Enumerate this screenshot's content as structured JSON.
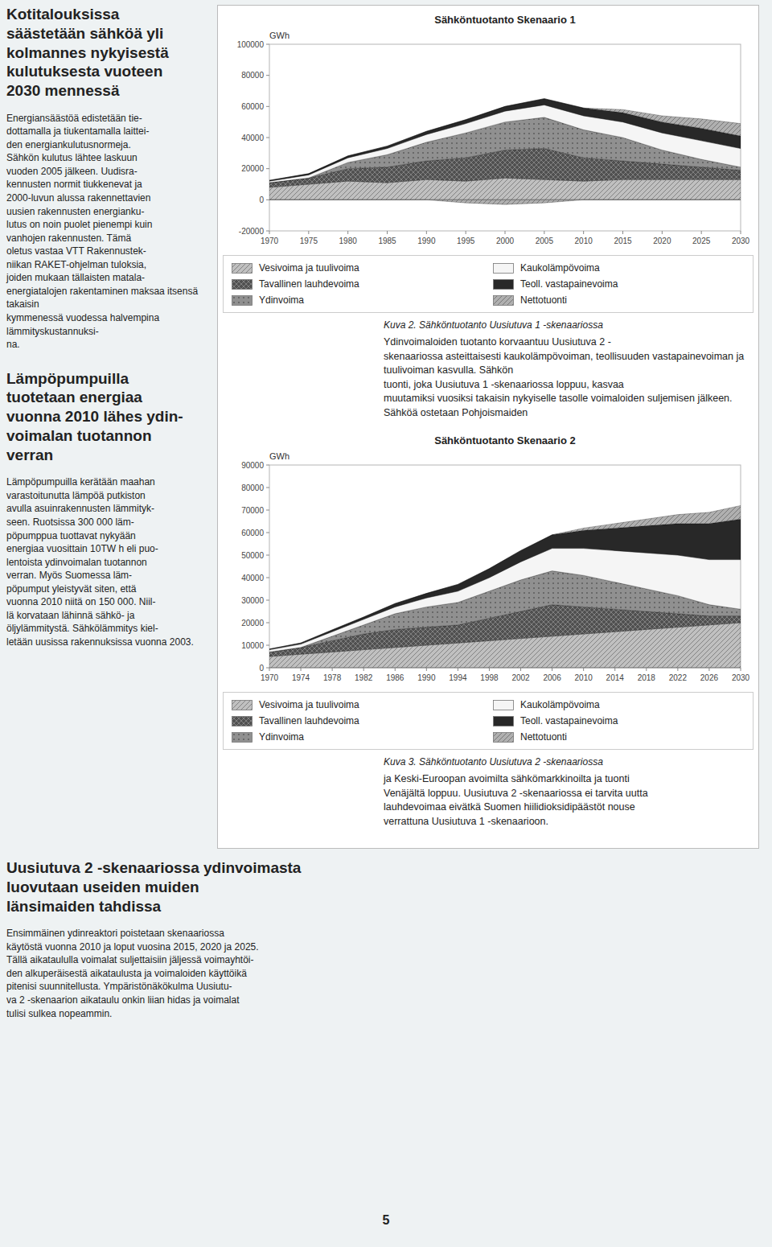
{
  "chart_data": [
    {
      "type": "area",
      "stacked": true,
      "title": "Sähköntuotanto Skenaario 1",
      "y_label": "GWh",
      "caption": "Kuva 2. Sähköntuotanto Uusiutuva 1 -skenaariossa",
      "x": [
        1970,
        1975,
        1980,
        1985,
        1990,
        1995,
        2000,
        2005,
        2010,
        2015,
        2020,
        2025,
        2030
      ],
      "xlim": [
        1970,
        2030
      ],
      "xticks": [
        1970,
        1975,
        1980,
        1985,
        1990,
        1995,
        2000,
        2005,
        2010,
        2015,
        2020,
        2025,
        2030
      ],
      "ylim": [
        -20000,
        100000
      ],
      "yticks": [
        -20000,
        0,
        20000,
        40000,
        60000,
        80000,
        100000
      ],
      "grid": false,
      "legend": "bottom",
      "series": [
        {
          "name": "Vesivoima ja tuulivoima",
          "color": "#c0c0c0",
          "values": [
            8000,
            10000,
            12000,
            11000,
            13000,
            12000,
            14000,
            13000,
            12000,
            13000,
            13000,
            13000,
            13000
          ]
        },
        {
          "name": "Tavallinen lauhdevoima",
          "color": "#505050",
          "values": [
            3000,
            4000,
            8000,
            10000,
            12000,
            15000,
            18000,
            20000,
            15000,
            12000,
            10000,
            8000,
            6000
          ]
        },
        {
          "name": "Ydinvoima",
          "color": "#909090",
          "values": [
            0,
            0,
            4000,
            8000,
            12000,
            16000,
            18000,
            20000,
            18000,
            15000,
            9000,
            5000,
            2000
          ]
        },
        {
          "name": "Kaukolämpövoima",
          "color": "#f5f5f5",
          "values": [
            1000,
            2000,
            3000,
            4000,
            5000,
            6000,
            7000,
            8000,
            9000,
            10000,
            11000,
            12000,
            12000
          ]
        },
        {
          "name": "Teoll. vastapainevoima",
          "color": "#282828",
          "values": [
            500,
            800,
            1200,
            1500,
            2000,
            2500,
            3000,
            4000,
            5000,
            6000,
            7000,
            8000,
            8000
          ]
        },
        {
          "name": "Nettotuonti",
          "color": "#b0b0b0",
          "values": [
            0,
            0,
            0,
            0,
            0,
            -2000,
            -3000,
            -2000,
            0,
            2000,
            4000,
            6000,
            8000
          ]
        }
      ]
    },
    {
      "type": "area",
      "stacked": true,
      "title": "Sähköntuotanto Skenaario 2",
      "y_label": "GWh",
      "caption": "Kuva 3. Sähköntuotanto Uusiutuva 2 -skenaariossa",
      "x": [
        1970,
        1974,
        1978,
        1982,
        1986,
        1990,
        1994,
        1998,
        2002,
        2006,
        2010,
        2014,
        2018,
        2022,
        2026,
        2030
      ],
      "xlim": [
        1970,
        2030
      ],
      "xticks": [
        1970,
        1974,
        1978,
        1982,
        1986,
        1990,
        1994,
        1998,
        2002,
        2006,
        2010,
        2014,
        2018,
        2022,
        2026,
        2030
      ],
      "ylim": [
        0,
        90000
      ],
      "yticks": [
        0,
        10000,
        20000,
        30000,
        40000,
        50000,
        60000,
        70000,
        80000,
        90000
      ],
      "grid": false,
      "legend": "bottom",
      "series": [
        {
          "name": "Vesivoima ja tuulivoima",
          "color": "#c0c0c0",
          "values": [
            5000,
            6000,
            7000,
            8000,
            9000,
            10000,
            11000,
            12000,
            13000,
            14000,
            15000,
            16000,
            17000,
            18000,
            19000,
            20000
          ]
        },
        {
          "name": "Tavallinen lauhdevoima",
          "color": "#505050",
          "values": [
            2000,
            3000,
            5000,
            7000,
            8000,
            8000,
            8000,
            10000,
            12000,
            14000,
            12000,
            10000,
            8000,
            6000,
            4000,
            3000
          ]
        },
        {
          "name": "Ydinvoima",
          "color": "#909090",
          "values": [
            0,
            0,
            2000,
            4000,
            7000,
            9000,
            10000,
            12000,
            14000,
            15000,
            14000,
            12000,
            10000,
            8000,
            5000,
            3000
          ]
        },
        {
          "name": "Kaukolämpövoima",
          "color": "#f5f5f5",
          "values": [
            1000,
            1500,
            2000,
            2500,
            3000,
            4000,
            5000,
            6000,
            8000,
            10000,
            12000,
            14000,
            16000,
            18000,
            20000,
            22000
          ]
        },
        {
          "name": "Teoll. vastapainevoima",
          "color": "#282828",
          "values": [
            300,
            500,
            800,
            1000,
            1500,
            2000,
            3000,
            4000,
            5000,
            6000,
            8000,
            10000,
            12000,
            14000,
            16000,
            18000
          ]
        },
        {
          "name": "Nettotuonti",
          "color": "#b0b0b0",
          "values": [
            0,
            0,
            0,
            0,
            0,
            0,
            0,
            0,
            0,
            0,
            1000,
            2000,
            3000,
            4000,
            5000,
            6000
          ]
        }
      ]
    }
  ],
  "heading_top": "Kotitalouksissa\nsäästetään sähköä yli\nkolmannes nykyisestä\nkulutuksesta vuoteen\n2030 mennessä",
  "body_1": "Energiansäästöä edistetään tie-\ndottamalla ja tiukentamalla laittei-\nden energiankulutusnormeja.\nSähkön kulutus lähtee laskuun\nvuoden 2005 jälkeen. Uudisra-\nkennusten normit tiukkenevat ja\n2000-luvun alussa rakennettavien\nuusien rakennusten energianku-\nlutus on noin puolet pienempi kuin\nvanhojen rakennusten. Tämä\noletus vastaa VTT Rakennustek-\nniikan RAKET-ohjelman tuloksia,\njoiden mukaan tällaisten matala-\nenergiatalojen rakentaminen maksaa itsensä takaisin\nkymmenessä vuodessa halvempina lämmityskustannuksi-\nna.",
  "heading_mid": "Lämpöpumpuilla\ntuotetaan energiaa\nvuonna 2010 lähes ydin-\nvoimalan tuotannon\nverran",
  "body_2": "Lämpöpumpuilla kerätään maahan\nvarastoitunutta lämpöä putkiston\navulla asuinrakennusten lämmityk-\nseen. Ruotsissa 300 000 läm-\npöpumppua tuottavat nykyään\nenergiaa vuosittain 10TW h eli puo-\nlentoista ydinvoimalan tuotannon\nverran. Myös Suomessa läm-\npöpumput yleistyvät siten, että\nvuonna 2010 niitä on 150 000. Niil-\nlä korvataan lähinnä sähkö- ja\nöljylämmitystä. Sähkölämmitys kiel-\nletään uusissa rakennuksissa vuonna 2003.",
  "text_right": [
    "Ydinvoimaloiden tuotanto korvaantuu Uusiutuva 2 -\nskenaariossa asteittaisesti kaukolämpövoiman, teollisuuden vastapainevoiman ja tuulivoiman kasvulla. Sähkön\ntuonti, joka Uusiutuva 1 -skenaariossa loppuu, kasvaa\nmuutamiksi vuosiksi takaisin nykyiselle tasolle voimaloiden suljemisen jälkeen. Sähköä ostetaan Pohjoismaiden",
    "ja Keski-Euroopan avoimilta sähkömarkkinoilta ja tuonti\nVenäjältä loppuu. Uusiutuva 2 -skenaariossa ei tarvita uutta\nlauhdevoimaa eivätkä Suomen hiilidioksidipäästöt nouse\nverrattuna Uusiutuva 1 -skenaarioon."
  ],
  "heading_bottom": "Uusiutuva 2 -skenaariossa ydinvoimasta\nluovutaan useiden muiden\nlänsimaiden tahdissa",
  "body_3": "Ensimmäinen ydinreaktori poistetaan skenaariossa\nkäytöstä vuonna 2010 ja loput vuosina 2015, 2020 ja 2025.\nTällä aikataululla voimalat suljettaisiin jäljessä voimayhtöi-\nden alkuperäisestä aikataulusta ja voimaloiden käyttöikä\npitenisi suunnitellusta. Ympäristönäkökulma Uusiutu-\nva 2 -skenaarion aikataulu onkin liian hidas ja voimalat\ntulisi sulkea nopeammin.",
  "page_number": "5"
}
